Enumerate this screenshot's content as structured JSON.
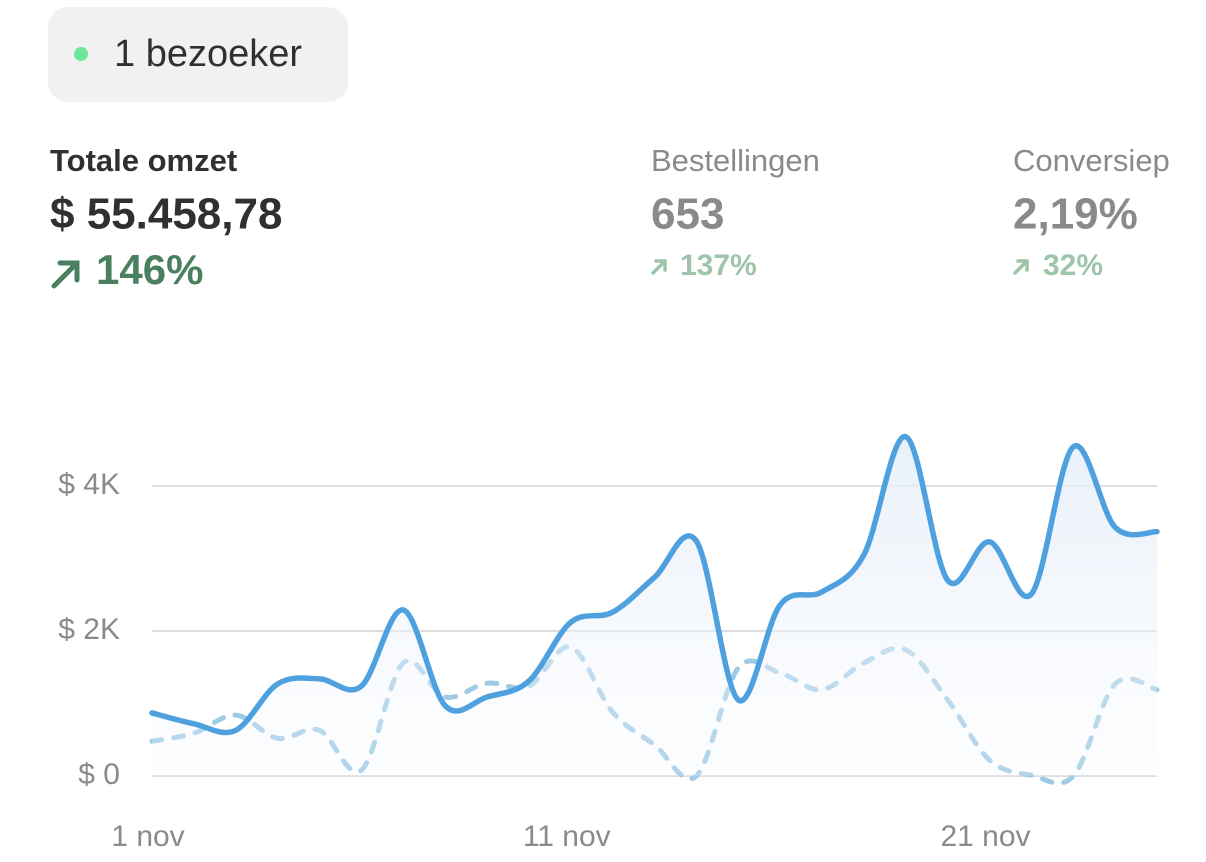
{
  "badge": {
    "label": "1 bezoeker"
  },
  "metrics": [
    {
      "label": "Totale omzet",
      "value": "$ 55.458,78",
      "change": "146%"
    },
    {
      "label": "Bestellingen",
      "value": "653",
      "change": "137%"
    },
    {
      "label": "Conversiep",
      "value": "2,19%",
      "change": "32%"
    }
  ],
  "chart_data": {
    "type": "line",
    "categories": [
      "1 nov",
      null,
      null,
      null,
      null,
      null,
      null,
      null,
      null,
      null,
      "11 nov",
      null,
      null,
      null,
      null,
      null,
      null,
      null,
      null,
      null,
      "21 nov",
      null,
      null,
      null,
      null
    ],
    "series": [
      {
        "color": "#4ea1de",
        "dashed": false,
        "values": [
          870,
          720,
          630,
          1270,
          1340,
          1240,
          2290,
          970,
          1090,
          1310,
          2120,
          2260,
          2740,
          3240,
          1050,
          2360,
          2540,
          3050,
          4680,
          2700,
          3230,
          2510,
          4540,
          3430,
          3370
        ]
      },
      {
        "color": "#9fcbe5",
        "dashed": true,
        "values": [
          480,
          590,
          840,
          520,
          630,
          80,
          1560,
          1090,
          1280,
          1240,
          1780,
          880,
          430,
          0,
          1490,
          1420,
          1190,
          1560,
          1740,
          1050,
          220,
          10,
          0,
          1270,
          1190
        ]
      }
    ],
    "ylim": [
      0,
      4800
    ],
    "yticks": [
      {
        "value": 0,
        "label": "$ 0"
      },
      {
        "value": 2000,
        "label": "$ 2K"
      },
      {
        "value": 4000,
        "label": "$ 4K"
      }
    ],
    "grid": true
  }
}
